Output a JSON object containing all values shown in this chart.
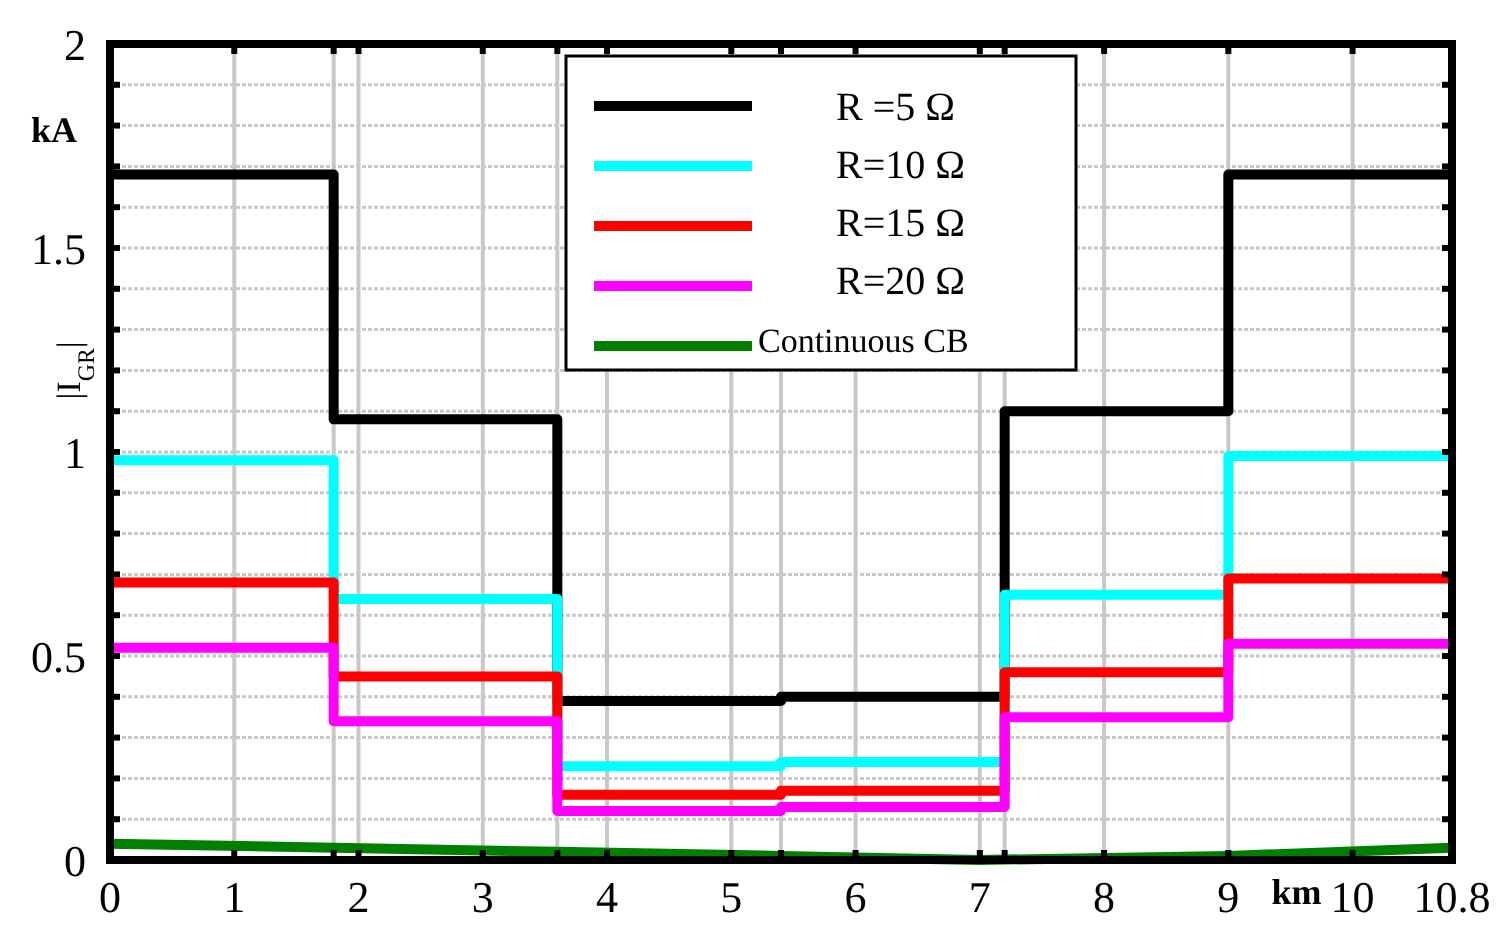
{
  "chart_data": {
    "type": "step",
    "xlabel": "km",
    "ylabel": "|I$_{GR}$|",
    "annotations": [
      "kA"
    ],
    "x": [
      0,
      1.8,
      3.6,
      5.4,
      7.2,
      9,
      10.8
    ],
    "series": [
      {
        "name": "R =5 Ω",
        "color": "#000000",
        "values": [
          1.68,
          1.08,
          0.39,
          0.4,
          1.1,
          1.68,
          1.68
        ]
      },
      {
        "name": "R=10 Ω",
        "color": "#00ffff",
        "values": [
          0.98,
          0.64,
          0.23,
          0.24,
          0.65,
          0.99,
          0.99
        ]
      },
      {
        "name": "R=15 Ω",
        "color": "#ff0000",
        "values": [
          0.68,
          0.45,
          0.16,
          0.17,
          0.46,
          0.69,
          0.69
        ]
      },
      {
        "name": "R=20 Ω",
        "color": "#ff00ff",
        "values": [
          0.52,
          0.34,
          0.12,
          0.13,
          0.35,
          0.53,
          0.53
        ]
      },
      {
        "name": "Continuous CB",
        "color": "#007f00",
        "type": "line",
        "x": [
          0,
          3.6,
          5.4,
          7,
          9,
          10.8
        ],
        "values": [
          0.04,
          0.02,
          0.01,
          0,
          0.01,
          0.03
        ]
      }
    ],
    "xlim": [
      0,
      10.8
    ],
    "ylim": [
      0,
      2
    ],
    "xticks": [
      0,
      1,
      {
        "value": 1.8,
        "label": null
      },
      2,
      3,
      {
        "value": 3.6,
        "label": null
      },
      4,
      5,
      {
        "value": 5.4,
        "label": null
      },
      6,
      7,
      {
        "value": 7.2,
        "label": null
      },
      8,
      9,
      10,
      10.8
    ],
    "yticks": [
      0,
      {
        "value": 0.1,
        "label": null
      },
      {
        "value": 0.2,
        "label": null
      },
      {
        "value": 0.3,
        "label": null
      },
      {
        "value": 0.4,
        "label": null
      },
      0.5,
      {
        "value": 0.6,
        "label": null
      },
      {
        "value": 0.7,
        "label": null
      },
      {
        "value": 0.8,
        "label": null
      },
      {
        "value": 0.9,
        "label": null
      },
      1,
      {
        "value": 1.1,
        "label": null
      },
      {
        "value": 1.2,
        "label": null
      },
      {
        "value": 1.3,
        "label": null
      },
      {
        "value": 1.4,
        "label": null
      },
      1.5,
      {
        "value": 1.6,
        "label": null
      },
      {
        "value": 1.7,
        "label": null
      },
      {
        "value": 1.8,
        "label": null
      },
      {
        "value": 1.9,
        "label": null
      },
      2
    ],
    "grid": true,
    "legend": "top"
  }
}
